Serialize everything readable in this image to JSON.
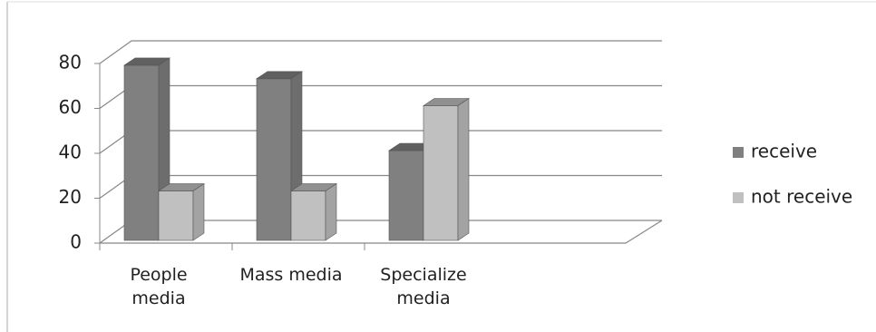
{
  "chart_data": {
    "type": "bar3d",
    "categories": [
      "People media",
      "Mass media",
      "Specialize media"
    ],
    "series": [
      {
        "name": "receive",
        "color": "#808080",
        "values": [
          78,
          72,
          40
        ]
      },
      {
        "name": "not receive",
        "color": "#c0c0c0",
        "values": [
          22,
          22,
          60
        ]
      }
    ],
    "ylim": [
      0,
      80
    ],
    "yticks": [
      0,
      20,
      40,
      60,
      80
    ],
    "grid": true,
    "legend": "right"
  }
}
